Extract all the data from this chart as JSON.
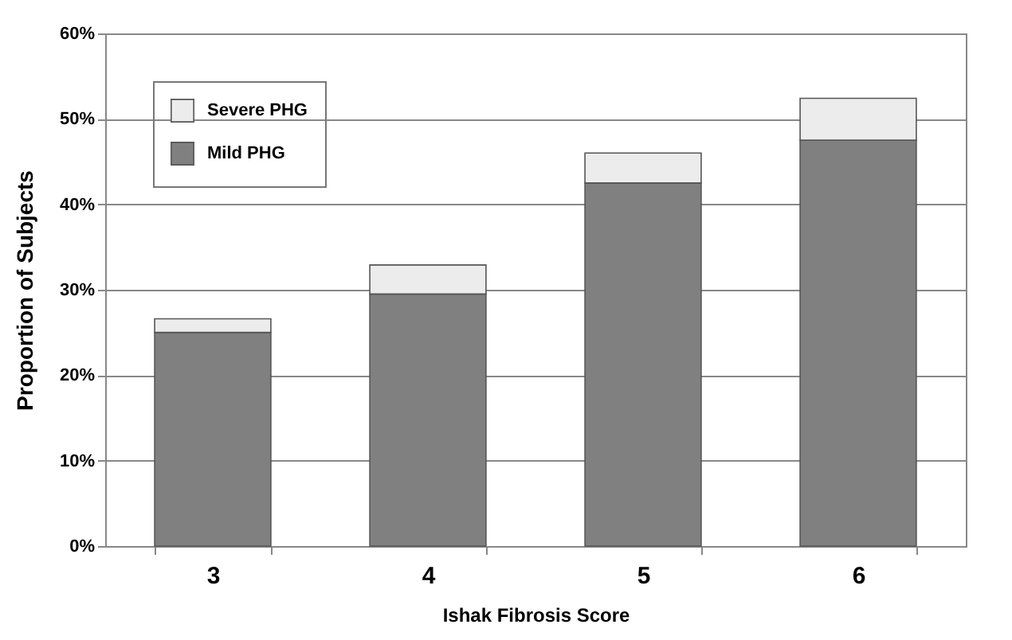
{
  "chart_data": {
    "type": "bar",
    "xlabel": "Ishak Fibrosis Score",
    "ylabel": "Proportion of Subjects",
    "categories": [
      "3",
      "4",
      "5",
      "6"
    ],
    "series": [
      {
        "name": "Mild PHG",
        "color": "#808080",
        "values": [
          25.0,
          29.5,
          42.5,
          47.5
        ]
      },
      {
        "name": "Severe PHG",
        "color": "#ececec",
        "values": [
          1.6,
          3.4,
          3.5,
          4.9
        ]
      }
    ],
    "stacked": true,
    "ylim": [
      0,
      60
    ],
    "yticks": [
      {
        "value": 0,
        "label": "0%"
      },
      {
        "value": 10,
        "label": "10%"
      },
      {
        "value": 20,
        "label": "20%"
      },
      {
        "value": 30,
        "label": "30%"
      },
      {
        "value": 40,
        "label": "40%"
      },
      {
        "value": 50,
        "label": "50%"
      },
      {
        "value": 60,
        "label": "60%"
      }
    ],
    "grid": "y",
    "legend": "top left"
  }
}
